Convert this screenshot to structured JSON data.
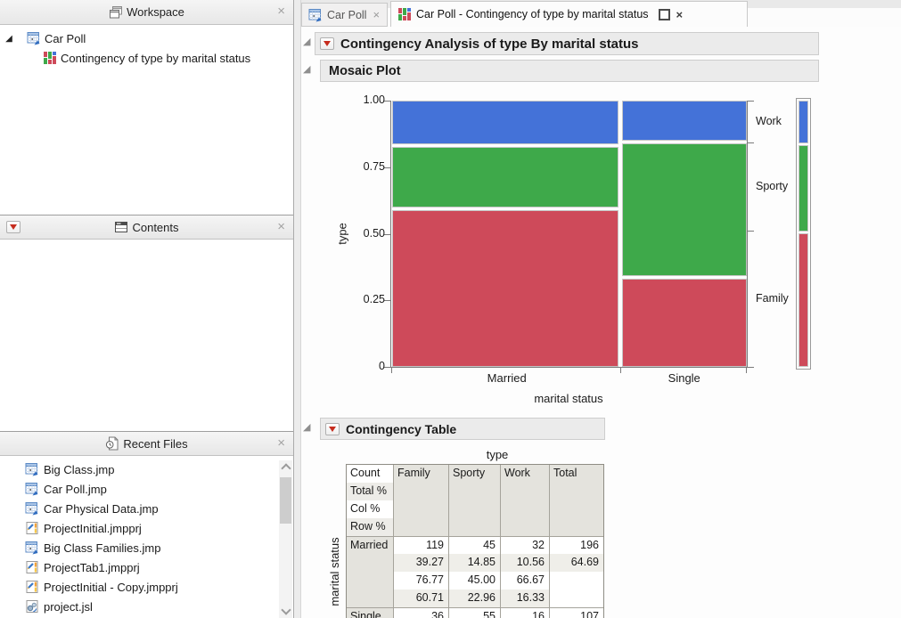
{
  "glyphs": {
    "close": "×",
    "disclosure": "◢",
    "expander": "◢"
  },
  "app": {
    "sidebar": {
      "workspace": {
        "title": "Workspace",
        "tree": {
          "root": "Car Poll",
          "child": "Contingency of type by marital status"
        }
      },
      "contents": {
        "title": "Contents"
      },
      "recent": {
        "title": "Recent Files",
        "files": [
          {
            "label": "Big Class.jmp",
            "icon": "jmp-table-icon"
          },
          {
            "label": "Car Poll.jmp",
            "icon": "jmp-table-icon"
          },
          {
            "label": "Car Physical Data.jmp",
            "icon": "jmp-table-icon"
          },
          {
            "label": "ProjectInitial.jmpprj",
            "icon": "jmp-project-icon"
          },
          {
            "label": "Big Class Families.jmp",
            "icon": "jmp-table-icon"
          },
          {
            "label": "ProjectTab1.jmpprj",
            "icon": "jmp-project-icon"
          },
          {
            "label": "ProjectInitial - Copy.jmpprj",
            "icon": "jmp-project-icon"
          },
          {
            "label": "project.jsl",
            "icon": "jmp-script-icon"
          }
        ]
      }
    },
    "tabs": [
      {
        "label": "Car Poll"
      },
      {
        "label": "Car Poll - Contingency of type by marital status"
      }
    ],
    "outlines": {
      "analysis": "Contingency Analysis of type By marital status",
      "mosaic": "Mosaic Plot",
      "contingency": "Contingency Table"
    }
  },
  "chart_data": {
    "type": "mosaic",
    "title": "Mosaic Plot",
    "xlabel": "marital status",
    "ylabel": "type",
    "x_categories": [
      "Married",
      "Single"
    ],
    "y_categories_top_to_bottom": [
      "Work",
      "Sporty",
      "Family"
    ],
    "colors": {
      "Work": "#4472D8",
      "Sporty": "#3EA94A",
      "Family": "#CE4A5A"
    },
    "column_share": {
      "Married": 0.6469,
      "Single": 0.3531
    },
    "columns": [
      {
        "label": "Married",
        "segments_top_to_bottom": [
          {
            "cat": "Work",
            "p": 0.1633
          },
          {
            "cat": "Sporty",
            "p": 0.2296
          },
          {
            "cat": "Family",
            "p": 0.6071
          }
        ]
      },
      {
        "label": "Single",
        "segments_top_to_bottom": [
          {
            "cat": "Work",
            "p": 0.1495
          },
          {
            "cat": "Sporty",
            "p": 0.514
          },
          {
            "cat": "Family",
            "p": 0.3364
          }
        ]
      }
    ],
    "overall_top_to_bottom": [
      {
        "cat": "Work",
        "p": 0.1584
      },
      {
        "cat": "Sporty",
        "p": 0.33
      },
      {
        "cat": "Family",
        "p": 0.5116
      }
    ],
    "y_ticks": [
      "1.00",
      "0.75",
      "0.50",
      "0.25",
      "0"
    ],
    "y_range": [
      0,
      1
    ]
  },
  "contingency_table": {
    "top_axis_label": "type",
    "side_axis_label": "marital status",
    "stat_labels": [
      "Count",
      "Total %",
      "Col %",
      "Row %"
    ],
    "col_headers": [
      "Family",
      "Sporty",
      "Work",
      "Total"
    ],
    "row_groups": [
      {
        "label": "Married",
        "rows": [
          [
            "119",
            "45",
            "32",
            "196"
          ],
          [
            "39.27",
            "14.85",
            "10.56",
            "64.69"
          ],
          [
            "76.77",
            "45.00",
            "66.67",
            ""
          ],
          [
            "60.71",
            "22.96",
            "16.33",
            ""
          ]
        ]
      },
      {
        "label": "Single",
        "rows": [
          [
            "36",
            "55",
            "16",
            "107"
          ]
        ]
      }
    ]
  }
}
